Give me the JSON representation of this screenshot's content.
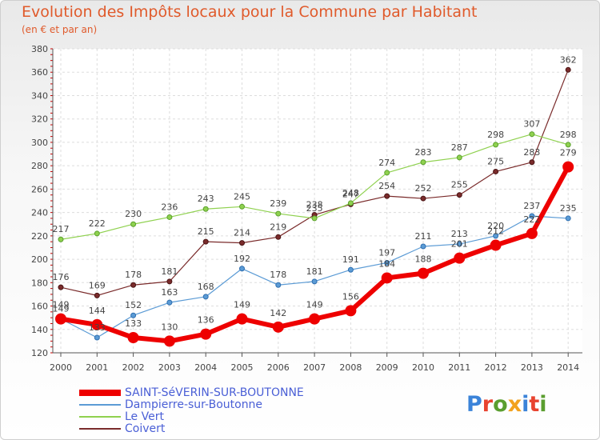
{
  "header": {
    "title": "Evolution des Impôts locaux pour la Commune par Habitant",
    "subtitle": "(en € et par an)"
  },
  "logo": {
    "text": "Proxiti",
    "colors": [
      "#3b83d9",
      "#e8432f",
      "#5a9e2f",
      "#f2a21e",
      "#3b83d9",
      "#e8432f",
      "#5a9e2f"
    ]
  },
  "chart_data": {
    "type": "line",
    "title": "Evolution des Impôts locaux pour la Commune par Habitant",
    "subtitle": "(en € et par an)",
    "xlabel": "",
    "ylabel": "",
    "ylim": [
      120,
      380
    ],
    "yticks": [
      120,
      140,
      160,
      180,
      200,
      220,
      240,
      260,
      280,
      300,
      320,
      340,
      360,
      380
    ],
    "grid": true,
    "legend_position": "bottom-left",
    "x": [
      "2000",
      "2001",
      "2002",
      "2003",
      "2004",
      "2005",
      "2006",
      "2007",
      "2008",
      "2009",
      "2010",
      "2011",
      "2012",
      "2013",
      "2014"
    ],
    "series": [
      {
        "name": "SAINT-SéVERIN-SUR-BOUTONNE",
        "color": "#ee0000",
        "values": [
          149,
          144,
          133,
          130,
          136,
          149,
          142,
          149,
          156,
          184,
          188,
          201,
          212,
          222,
          279
        ]
      },
      {
        "name": "Dampierre-sur-Boutonne",
        "color": "#5b9bd5",
        "values": [
          149,
          133,
          152,
          163,
          168,
          192,
          178,
          181,
          191,
          197,
          211,
          213,
          220,
          237,
          235
        ]
      },
      {
        "name": "Le Vert",
        "color": "#8fd14f",
        "values": [
          217,
          222,
          230,
          236,
          243,
          245,
          239,
          235,
          248,
          274,
          283,
          287,
          298,
          307,
          298
        ]
      },
      {
        "name": "Coivert",
        "color": "#7a2b2b",
        "values": [
          176,
          169,
          178,
          181,
          215,
          214,
          219,
          238,
          247,
          254,
          252,
          255,
          275,
          283,
          362
        ]
      }
    ]
  }
}
